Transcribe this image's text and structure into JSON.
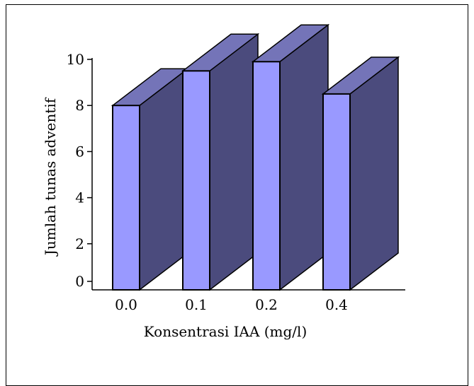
{
  "chart_data": {
    "type": "bar",
    "style": "3d-column",
    "categories": [
      "0.0",
      "0.1",
      "0.2",
      "0.4"
    ],
    "values": [
      8.0,
      9.5,
      9.9,
      8.5
    ],
    "xlabel": "Konsentrasi IAA (mg/l)",
    "ylabel": "Jumlah tunas adventif",
    "yticks": [
      "0",
      "2",
      "4",
      "6",
      "8",
      "10"
    ],
    "ylim": [
      0,
      10
    ],
    "grid": false,
    "legend": "none",
    "colors": {
      "front": "#9999ff",
      "side": "#4b4b7d",
      "top": "#7474b8",
      "axis": "#000000"
    }
  }
}
